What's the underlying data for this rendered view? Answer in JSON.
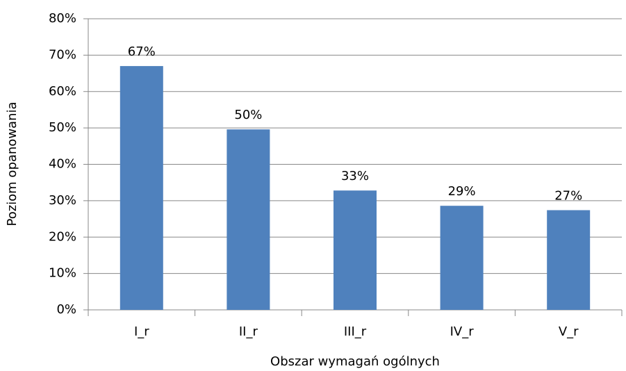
{
  "chart_data": {
    "type": "bar",
    "x_label": "Obszar wymagań ogólnych",
    "y_label": "Poziom opanowania",
    "categories": [
      "I_r",
      "II_r",
      "III_r",
      "IV_r",
      "V_r"
    ],
    "values": [
      67,
      49.6,
      32.8,
      28.6,
      27.4
    ],
    "value_labels": [
      "67%",
      "50%",
      "33%",
      "29%",
      "27%"
    ],
    "color": "#4f81bd",
    "ylim": [
      0,
      80
    ],
    "yticks": [
      {
        "value": 0,
        "label": "0%"
      },
      {
        "value": 10,
        "label": "10%"
      },
      {
        "value": 20,
        "label": "20%"
      },
      {
        "value": 30,
        "label": "30%"
      },
      {
        "value": 40,
        "label": "40%"
      },
      {
        "value": 50,
        "label": "50%"
      },
      {
        "value": 60,
        "label": "60%"
      },
      {
        "value": 70,
        "label": "70%"
      },
      {
        "value": 80,
        "label": "80%"
      }
    ],
    "grid": true
  }
}
